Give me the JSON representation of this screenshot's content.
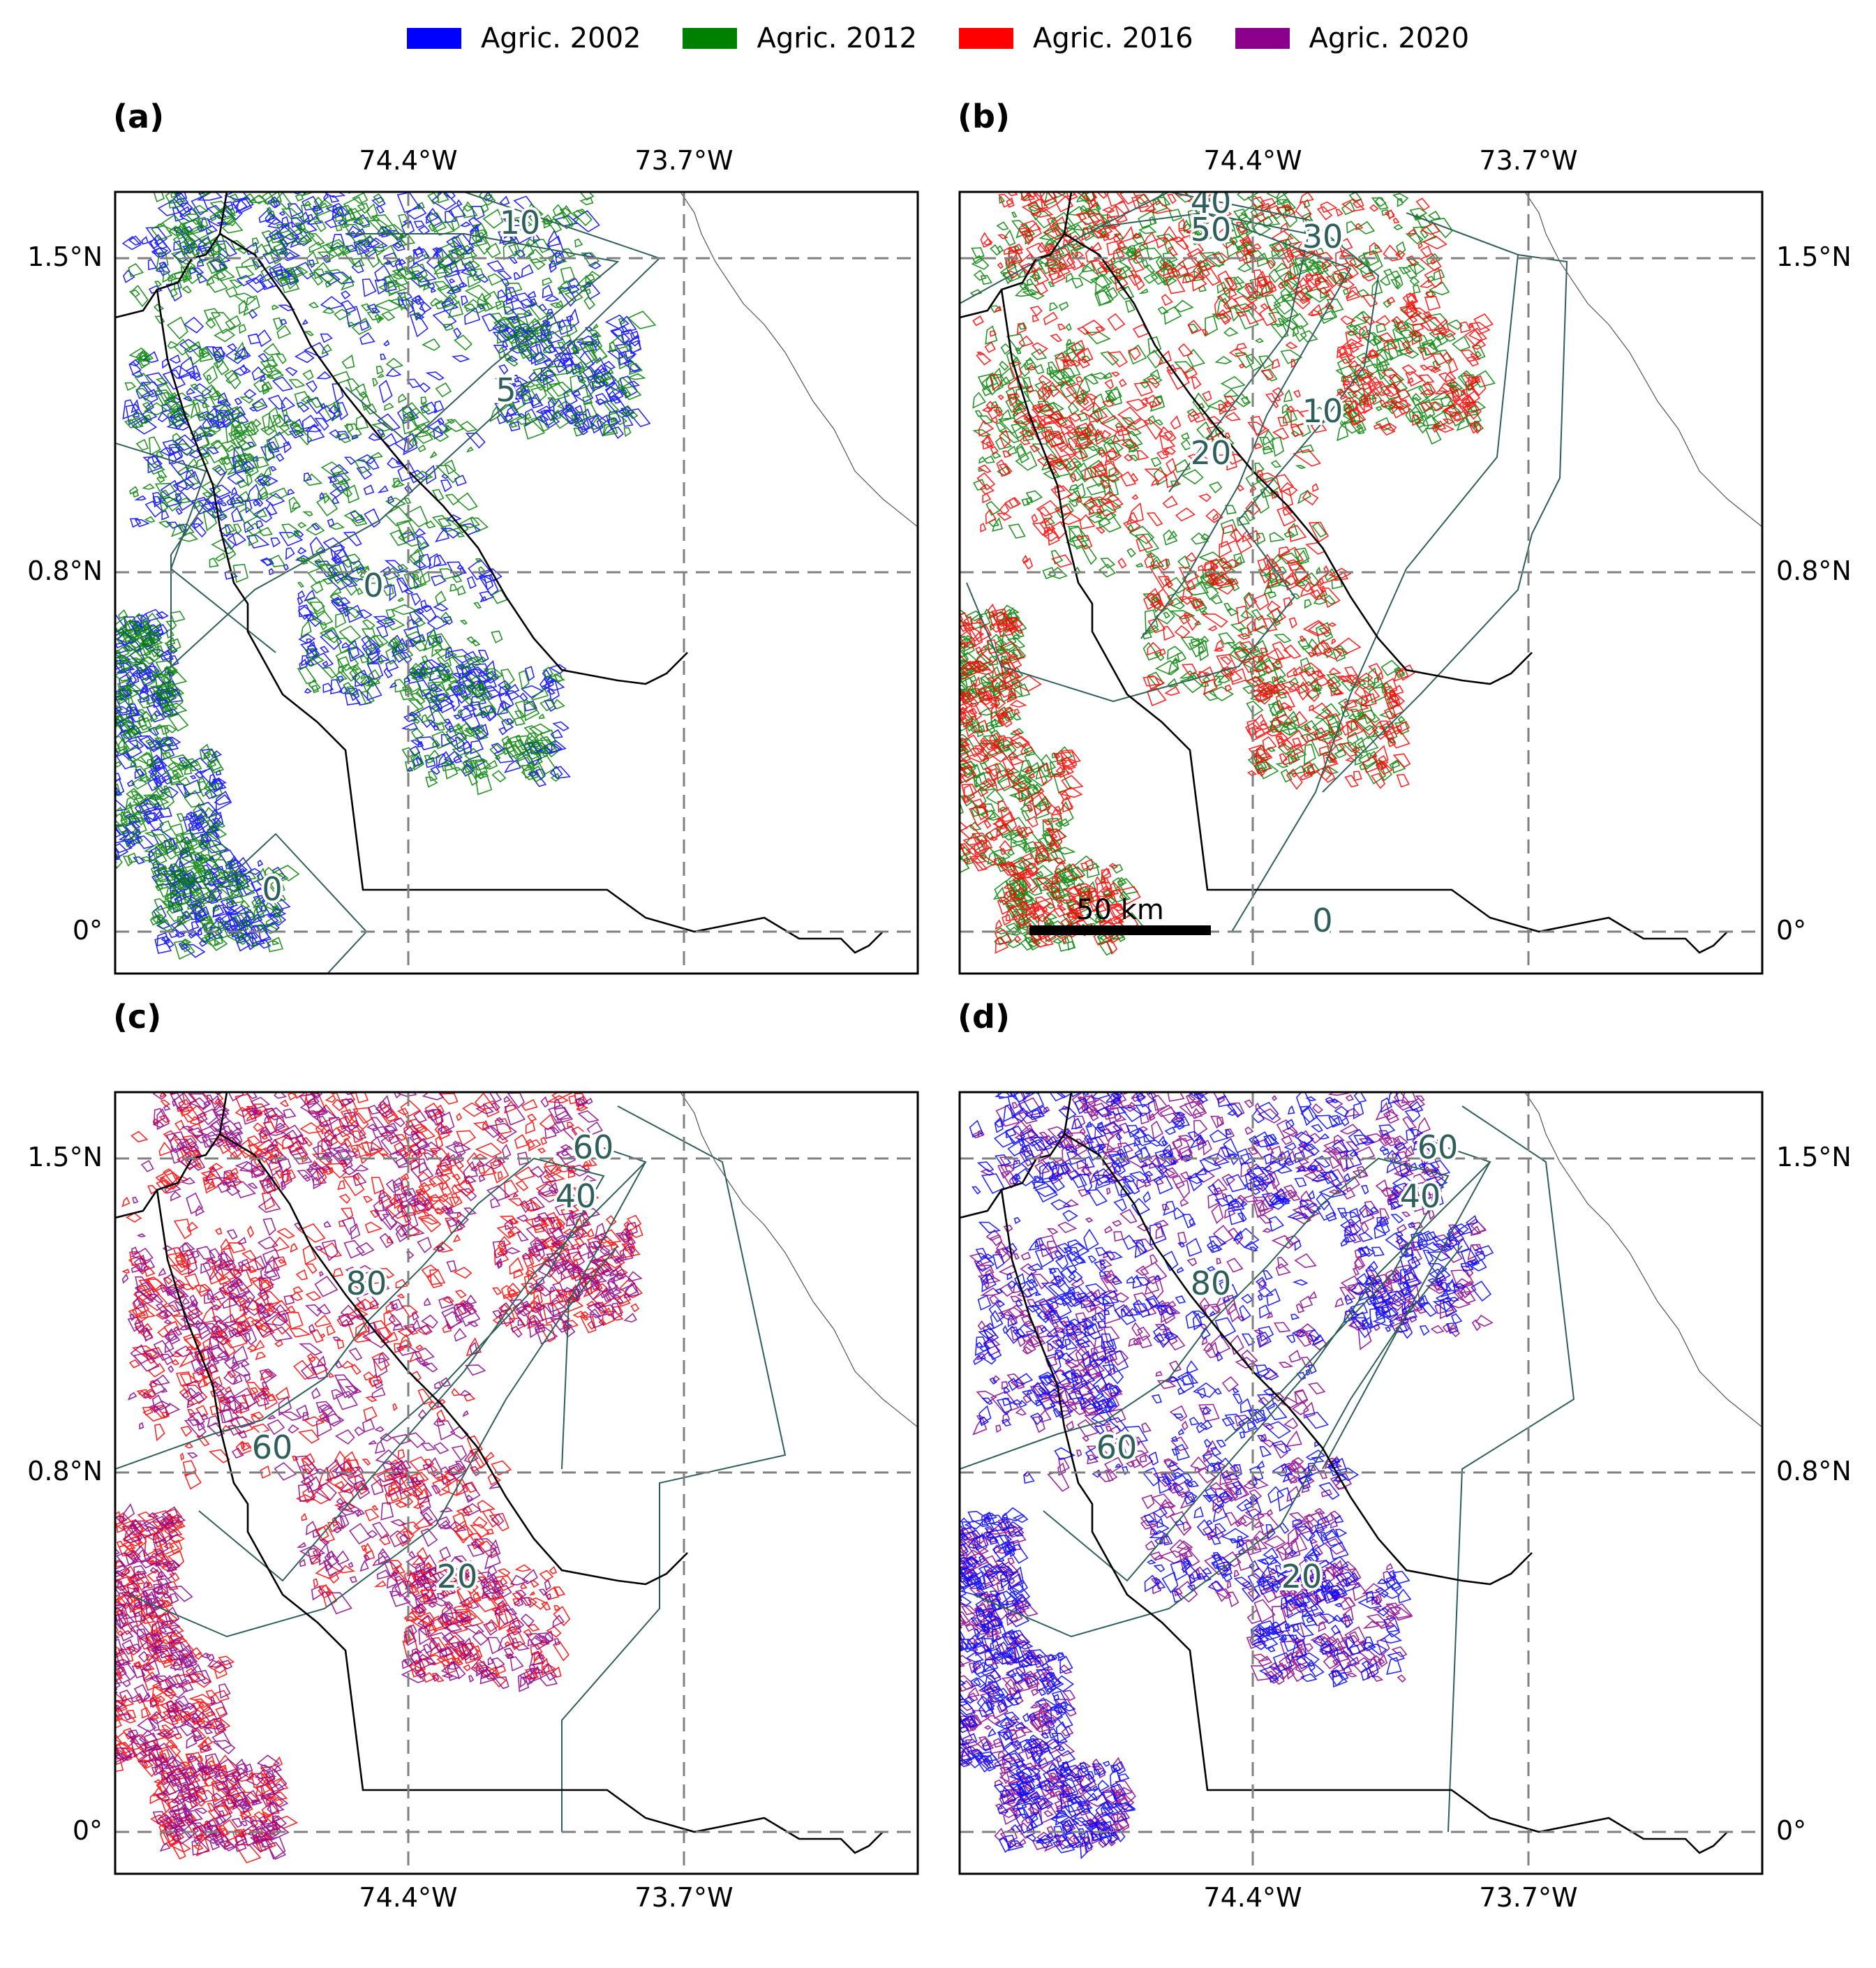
{
  "legend": [
    {
      "label": "Agric. 2002",
      "color": "#0000ff"
    },
    {
      "label": "Agric. 2012",
      "color": "#008000"
    },
    {
      "label": "Agric. 2016",
      "color": "#ff0000"
    },
    {
      "label": "Agric. 2020",
      "color": "#8b008b"
    }
  ],
  "colors": {
    "contour": "#2f5f5a",
    "boundary": "#000000",
    "gridline": "#808080",
    "frame": "#000000"
  },
  "panels": [
    {
      "letter": "(a)",
      "top_lon": [
        "74.4°W",
        "73.7°W"
      ],
      "bottom_lon": [],
      "left_lat": [
        "1.5°N",
        "0.8°N",
        "0°"
      ],
      "right_lat": [],
      "layers": [
        "Agric. 2002",
        "Agric. 2012"
      ],
      "contour_labels": [
        "10",
        "5",
        "0",
        "0"
      ],
      "scale_bar": ""
    },
    {
      "letter": "(b)",
      "top_lon": [
        "74.4°W",
        "73.7°W"
      ],
      "bottom_lon": [],
      "left_lat": [],
      "right_lat": [
        "1.5°N",
        "0.8°N",
        "0°"
      ],
      "layers": [
        "Agric. 2012",
        "Agric. 2016"
      ],
      "contour_labels": [
        "40",
        "50",
        "30",
        "10",
        "20",
        "0"
      ],
      "scale_bar": "50 km"
    },
    {
      "letter": "(c)",
      "top_lon": [],
      "bottom_lon": [
        "74.4°W",
        "73.7°W"
      ],
      "left_lat": [
        "1.5°N",
        "0.8°N",
        "0°"
      ],
      "right_lat": [],
      "layers": [
        "Agric. 2016",
        "Agric. 2020"
      ],
      "contour_labels": [
        "60",
        "40",
        "80",
        "60",
        "20"
      ],
      "scale_bar": ""
    },
    {
      "letter": "(d)",
      "top_lon": [],
      "bottom_lon": [
        "74.4°W",
        "73.7°W"
      ],
      "left_lat": [],
      "right_lat": [
        "1.5°N",
        "0.8°N",
        "0°"
      ],
      "layers": [
        "Agric. 2020",
        "Agric. 2002"
      ],
      "contour_labels": [
        "60",
        "40",
        "80",
        "60",
        "20"
      ],
      "scale_bar": ""
    }
  ]
}
